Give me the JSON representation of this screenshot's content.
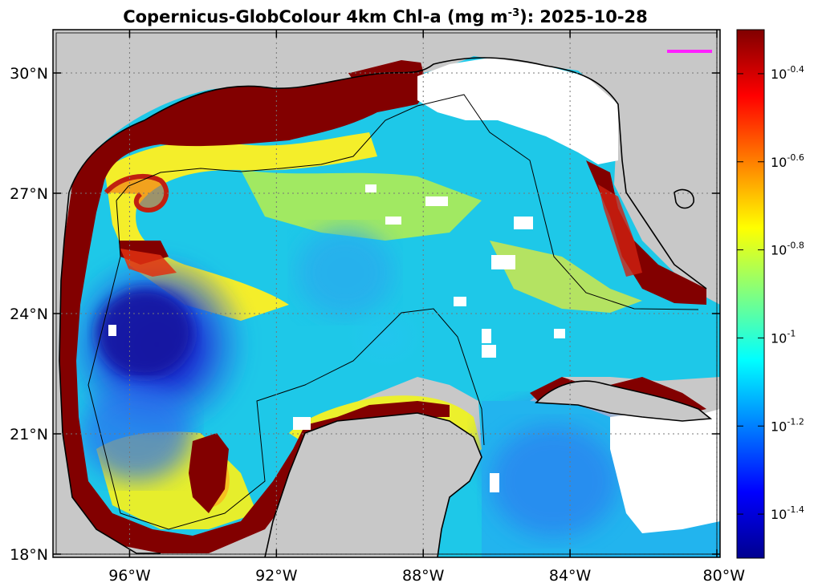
{
  "title": {
    "prefix": "Copernicus-GlobColour 4km Chl-a (mg m",
    "exponent": "-3",
    "suffix": "): 2025-10-28"
  },
  "map": {
    "lon_range": [
      -98,
      -80
    ],
    "lat_range": [
      18,
      31
    ],
    "lat_ticks": [
      {
        "value": 30,
        "label": "30°N"
      },
      {
        "value": 27,
        "label": "27°N"
      },
      {
        "value": 24,
        "label": "24°N"
      },
      {
        "value": 21,
        "label": "21°N"
      },
      {
        "value": 18,
        "label": "18°N"
      }
    ],
    "lon_ticks": [
      {
        "value": -96,
        "label": "96°W"
      },
      {
        "value": -92,
        "label": "92°W"
      },
      {
        "value": -88,
        "label": "88°W"
      },
      {
        "value": -84,
        "label": "84°W"
      },
      {
        "value": -80,
        "label": "80°W"
      }
    ],
    "grid": "dotted",
    "land_color": "#c8c8c8",
    "no_data_color": "#ffffff",
    "eez_line_color": "#000000"
  },
  "colorbar": {
    "scale": "log10",
    "range": [
      -1.5,
      -0.3
    ],
    "ticks": [
      {
        "value": -0.4,
        "base": "10",
        "exp": "-0.4"
      },
      {
        "value": -0.6,
        "base": "10",
        "exp": "-0.6"
      },
      {
        "value": -0.8,
        "base": "10",
        "exp": "-0.8"
      },
      {
        "value": -1.0,
        "base": "10",
        "exp": "-1"
      },
      {
        "value": -1.2,
        "base": "10",
        "exp": "-1.2"
      },
      {
        "value": -1.4,
        "base": "10",
        "exp": "-1.4"
      }
    ],
    "colormap": "jet"
  }
}
